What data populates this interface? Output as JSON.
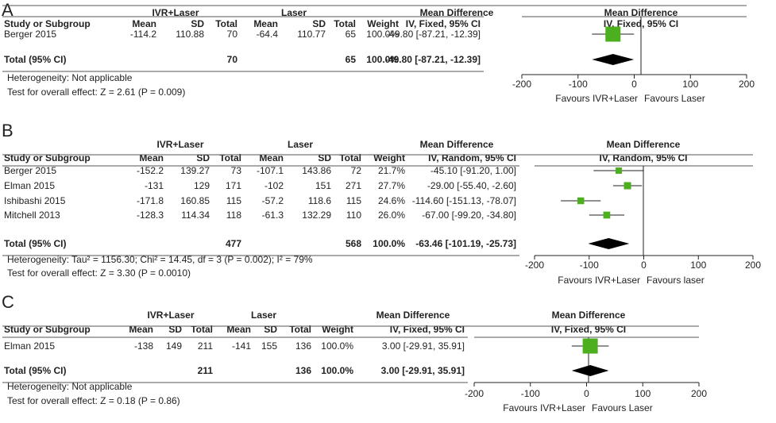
{
  "chart_data": [
    {
      "type": "table",
      "panel": "A",
      "group_headers": [
        "IVR+Laser",
        "Laser",
        "Mean Difference",
        "Mean Difference"
      ],
      "columns": [
        "Study or Subgroup",
        "Mean",
        "SD",
        "Total",
        "Mean",
        "SD",
        "Total",
        "Weight",
        "IV, Fixed, 95% CI",
        "IV, Fixed, 95% CI"
      ],
      "studies": [
        {
          "name": "Berger 2015",
          "m1": "-114.2",
          "sd1": "110.88",
          "n1": "70",
          "m2": "-64.4",
          "sd2": "110.77",
          "n2": "65",
          "weight": "100.0%",
          "ci_text": "-49.80 [-87.21, -12.39]",
          "est": -49.8,
          "lo": -87.21,
          "hi": -12.39,
          "w": 100.0
        }
      ],
      "total": {
        "label": "Total (95% CI)",
        "n1": "70",
        "n2": "65",
        "weight": "100.0%",
        "ci_text": "-49.80 [-87.21, -12.39]",
        "est": -49.8,
        "lo": -87.21,
        "hi": -12.39
      },
      "heterogeneity": "Heterogeneity: Not applicable",
      "overall_effect": "Test for overall effect: Z = 2.61 (P = 0.009)",
      "xlim": [
        -200,
        200
      ],
      "ticks": [
        "-200",
        "-100",
        "0",
        "100",
        "200"
      ],
      "favours_left": "Favours IVR+Laser",
      "favours_right": "Favours Laser"
    },
    {
      "type": "table",
      "panel": "B",
      "group_headers": [
        "IVR+Laser",
        "Laser",
        "Mean Difference",
        "Mean Difference"
      ],
      "columns": [
        "Study or Subgroup",
        "Mean",
        "SD",
        "Total",
        "Mean",
        "SD",
        "Total",
        "Weight",
        "IV, Random, 95% CI",
        "IV, Random, 95% CI"
      ],
      "studies": [
        {
          "name": "Berger 2015",
          "m1": "-152.2",
          "sd1": "139.27",
          "n1": "73",
          "m2": "-107.1",
          "sd2": "143.86",
          "n2": "72",
          "weight": "21.7%",
          "ci_text": "-45.10 [-91.20, 1.00]",
          "est": -45.1,
          "lo": -91.2,
          "hi": 1.0,
          "w": 21.7
        },
        {
          "name": "Elman 2015",
          "m1": "-131",
          "sd1": "129",
          "n1": "171",
          "m2": "-102",
          "sd2": "151",
          "n2": "271",
          "weight": "27.7%",
          "ci_text": "-29.00 [-55.40, -2.60]",
          "est": -29.0,
          "lo": -55.4,
          "hi": -2.6,
          "w": 27.7
        },
        {
          "name": "Ishibashi 2015",
          "m1": "-171.8",
          "sd1": "160.85",
          "n1": "115",
          "m2": "-57.2",
          "sd2": "118.6",
          "n2": "115",
          "weight": "24.6%",
          "ci_text": "-114.60 [-151.13, -78.07]",
          "est": -114.6,
          "lo": -151.13,
          "hi": -78.07,
          "w": 24.6
        },
        {
          "name": "Mitchell 2013",
          "m1": "-128.3",
          "sd1": "114.34",
          "n1": "118",
          "m2": "-61.3",
          "sd2": "132.29",
          "n2": "110",
          "weight": "26.0%",
          "ci_text": "-67.00 [-99.20, -34.80]",
          "est": -67.0,
          "lo": -99.2,
          "hi": -34.8,
          "w": 26.0
        }
      ],
      "total": {
        "label": "Total (95% CI)",
        "n1": "477",
        "n2": "568",
        "weight": "100.0%",
        "ci_text": "-63.46 [-101.19, -25.73]",
        "est": -63.46,
        "lo": -101.19,
        "hi": -25.73
      },
      "heterogeneity": "Heterogeneity: Tau² = 1156.30; Chi² = 14.45, df = 3 (P = 0.002); I² = 79%",
      "overall_effect": "Test for overall effect: Z = 3.30 (P = 0.0010)",
      "xlim": [
        -200,
        200
      ],
      "ticks": [
        "-200",
        "-100",
        "0",
        "100",
        "200"
      ],
      "favours_left": "Favours IVR+Laser",
      "favours_right": "Favours laser"
    },
    {
      "type": "table",
      "panel": "C",
      "group_headers": [
        "IVR+Laser",
        "Laser",
        "Mean Difference",
        "Mean Difference"
      ],
      "columns": [
        "Study or Subgroup",
        "Mean",
        "SD",
        "Total",
        "Mean",
        "SD",
        "Total",
        "Weight",
        "IV, Fixed, 95% CI",
        "IV, Fixed, 95% CI"
      ],
      "studies": [
        {
          "name": "Elman 2015",
          "m1": "-138",
          "sd1": "149",
          "n1": "211",
          "m2": "-141",
          "sd2": "155",
          "n2": "136",
          "weight": "100.0%",
          "ci_text": "3.00 [-29.91, 35.91]",
          "est": 3.0,
          "lo": -29.91,
          "hi": 35.91,
          "w": 100.0
        }
      ],
      "total": {
        "label": "Total (95% CI)",
        "n1": "211",
        "n2": "136",
        "weight": "100.0%",
        "ci_text": "3.00 [-29.91, 35.91]",
        "est": 3.0,
        "lo": -29.91,
        "hi": 35.91
      },
      "heterogeneity": "Heterogeneity: Not applicable",
      "overall_effect": "Test for overall effect: Z = 0.18 (P = 0.86)",
      "xlim": [
        -200,
        200
      ],
      "ticks": [
        "-200",
        "-100",
        "0",
        "100",
        "200"
      ],
      "favours_left": "Favours IVR+Laser",
      "favours_right": "Favours Laser"
    }
  ],
  "colors": {
    "marker": "#4caf1e",
    "diamond": "#000000",
    "rule": "#333333"
  }
}
